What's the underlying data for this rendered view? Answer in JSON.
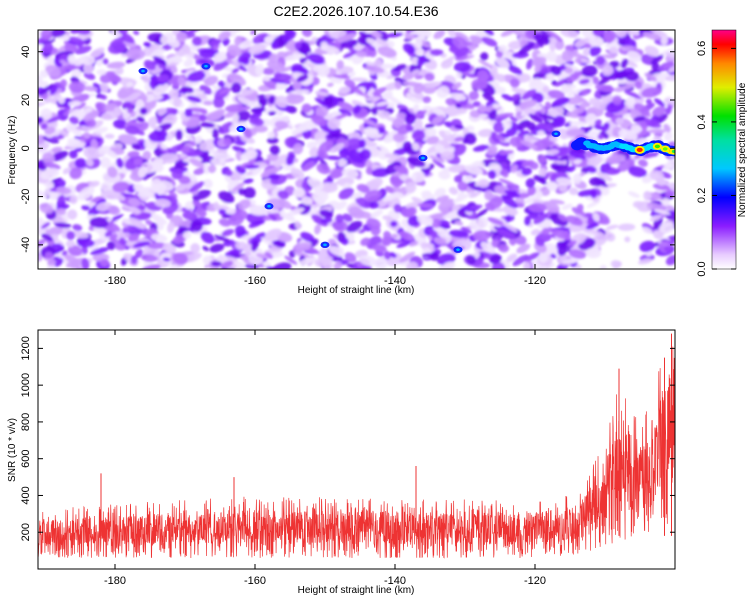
{
  "title": "C2E2.2026.107.10.54.E36",
  "chart_data": [
    {
      "type": "heatmap",
      "xlabel": "Height of straight line (km)",
      "ylabel": "Frequency (Hz)",
      "xlim": [
        -191,
        -100
      ],
      "ylim": [
        -50,
        49
      ],
      "xticks": [
        -180,
        -160,
        -140,
        -120
      ],
      "yticks": [
        -40,
        -20,
        0,
        20,
        40
      ],
      "colorbar": {
        "label": "Normalized spectral amplitude",
        "range": [
          0.0,
          0.65
        ],
        "ticks": [
          0.0,
          0.2,
          0.4,
          0.6
        ]
      },
      "features": [
        {
          "description": "strong spectral ridge near 0 Hz",
          "x_range": [
            -114,
            -100
          ],
          "frequency": 0,
          "peak_amplitude": 0.6
        },
        {
          "description": "diffuse background noise",
          "x_range": [
            -191,
            -100
          ],
          "frequency_range": [
            -50,
            49
          ],
          "amplitude_range": [
            0.0,
            0.15
          ]
        },
        {
          "description": "data gap / white region",
          "x_range": [
            -110,
            -104
          ],
          "frequency_range": [
            -50,
            -10
          ]
        }
      ],
      "hotspots": [
        {
          "x": -176,
          "y": 32,
          "v": 0.22
        },
        {
          "x": -162,
          "y": 8,
          "v": 0.2
        },
        {
          "x": -158,
          "y": -24,
          "v": 0.18
        },
        {
          "x": -150,
          "y": -40,
          "v": 0.22
        },
        {
          "x": -136,
          "y": -4,
          "v": 0.18
        },
        {
          "x": -131,
          "y": -42,
          "v": 0.2
        },
        {
          "x": -167,
          "y": 34,
          "v": 0.17
        },
        {
          "x": -117,
          "y": 6,
          "v": 0.22
        }
      ]
    },
    {
      "type": "line",
      "xlabel": "Height of straight line (km)",
      "ylabel": "SNR (10 * v/v)",
      "xlim": [
        -191,
        -100
      ],
      "ylim": [
        0,
        1300
      ],
      "xticks": [
        -180,
        -160,
        -140,
        -120
      ],
      "yticks": [
        200,
        400,
        600,
        800,
        1000,
        1200
      ],
      "series": [
        {
          "name": "SNR",
          "color": "#ee3333",
          "envelope": [
            {
              "x": -191,
              "min": 60,
              "max": 320
            },
            {
              "x": -180,
              "min": 60,
              "max": 360
            },
            {
              "x": -160,
              "min": 60,
              "max": 400
            },
            {
              "x": -140,
              "min": 60,
              "max": 380
            },
            {
              "x": -120,
              "min": 60,
              "max": 380
            },
            {
              "x": -114,
              "min": 80,
              "max": 420
            },
            {
              "x": -110,
              "min": 120,
              "max": 680
            },
            {
              "x": -108,
              "min": 150,
              "max": 1090
            },
            {
              "x": -105,
              "min": 180,
              "max": 760
            },
            {
              "x": -102,
              "min": 200,
              "max": 1150
            },
            {
              "x": -100,
              "min": 250,
              "max": 1300
            }
          ],
          "spikes": [
            {
              "x": -163,
              "y": 500
            },
            {
              "x": -137,
              "y": 560
            },
            {
              "x": -182,
              "y": 520
            },
            {
              "x": -108,
              "y": 1090
            },
            {
              "x": -101.5,
              "y": 1150
            },
            {
              "x": -100.5,
              "y": 1280
            }
          ]
        }
      ]
    }
  ]
}
